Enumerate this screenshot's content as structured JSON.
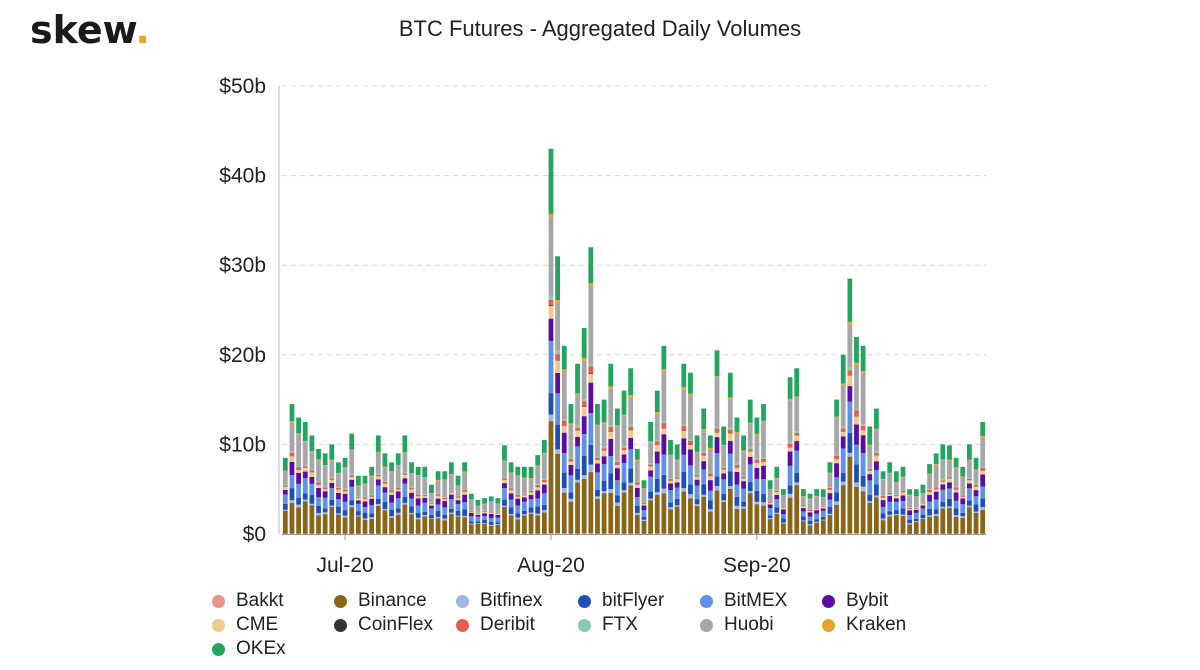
{
  "logo": {
    "text": "skew",
    "dot": "."
  },
  "chart_data": {
    "type": "bar",
    "stacked": true,
    "title": "BTC Futures - Aggregated Daily Volumes",
    "ylim": [
      0,
      50
    ],
    "yticks": [
      "$0",
      "$10b",
      "$20b",
      "$30b",
      "$40b",
      "$50b"
    ],
    "ytick_values": [
      0,
      10,
      20,
      30,
      40,
      50
    ],
    "xticks": [
      {
        "label": "Jul-20",
        "index": 9
      },
      {
        "label": "Aug-20",
        "index": 40
      },
      {
        "label": "Sep-20",
        "index": 71
      }
    ],
    "grid": true,
    "legend_position": "bottom",
    "x_start": "2020-06-22",
    "totals": [
      8.5,
      14.5,
      13,
      12.5,
      11,
      9.5,
      9,
      10,
      8,
      8.5,
      11.2,
      6.5,
      6.5,
      7.5,
      11,
      9,
      8,
      9,
      11,
      8,
      7.5,
      7.5,
      5.5,
      7,
      7,
      8,
      6.5,
      8,
      4.5,
      3.8,
      4,
      4.2,
      4,
      9.9,
      8,
      7.5,
      7.5,
      7.5,
      8.8,
      10.5,
      43,
      31,
      21,
      14.5,
      19,
      23,
      32,
      14.5,
      15,
      19,
      14,
      16,
      18.5,
      9.5,
      6,
      12.5,
      16,
      21,
      10.5,
      10,
      19,
      18,
      11,
      14,
      11,
      20.5,
      12,
      18,
      13,
      11,
      15,
      13,
      14.5,
      6,
      7.5,
      5,
      17.5,
      18.5,
      5,
      4.5,
      5,
      5,
      8,
      15,
      20,
      28.5,
      22,
      21,
      12,
      14,
      7,
      8,
      7,
      7.5,
      5,
      5,
      5.5,
      7.8,
      9,
      10,
      9.9,
      8.5,
      7.5,
      10,
      8.5,
      12.5
    ],
    "series": [
      {
        "name": "Bakkt",
        "color": "#e8948c",
        "share": 0.003
      },
      {
        "name": "Binance",
        "color": "#8b6517",
        "share": 0.26
      },
      {
        "name": "Bitfinex",
        "color": "#9db8e6",
        "share": 0.02
      },
      {
        "name": "bitFlyer",
        "color": "#1f4fb5",
        "share": 0.07
      },
      {
        "name": "BitMEX",
        "color": "#5f92e6",
        "share": 0.12
      },
      {
        "name": "Bybit",
        "color": "#5a0da5",
        "share": 0.08
      },
      {
        "name": "CME",
        "color": "#f2c98c",
        "share": 0.035
      },
      {
        "name": "CoinFlex",
        "color": "#333333",
        "share": 0.002
      },
      {
        "name": "Deribit",
        "color": "#e85b50",
        "share": 0.02
      },
      {
        "name": "FTX",
        "color": "#88ccaa",
        "share": 0.01
      },
      {
        "name": "Huobi",
        "color": "#a5a7a8",
        "share": 0.22
      },
      {
        "name": "Kraken",
        "color": "#e8a628",
        "share": 0.01
      },
      {
        "name": "OKEx",
        "color": "#22a55e",
        "share": 0.15
      }
    ]
  }
}
